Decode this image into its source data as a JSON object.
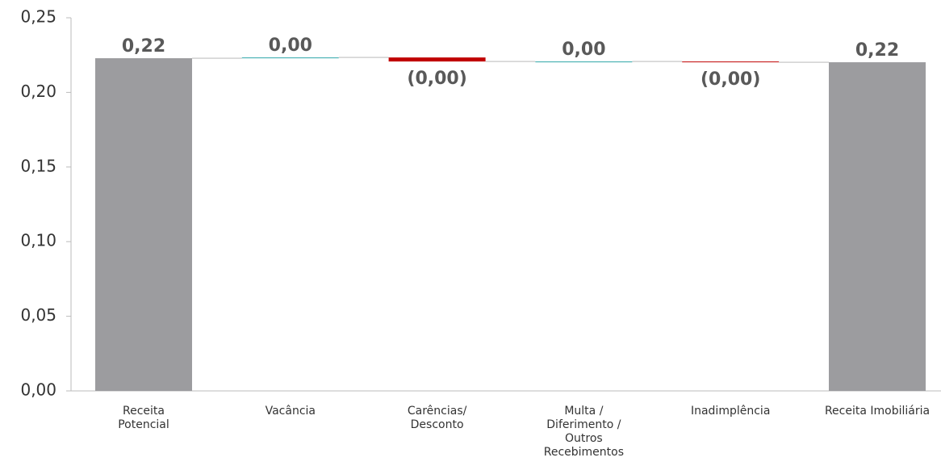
{
  "chart_data": {
    "type": "waterfall",
    "categories": [
      "Receita\nPotencial",
      "Vacância",
      "Carências/\nDesconto",
      "Multa /\nDiferimento /\nOutros\nRecebimentos",
      "Inadimplência",
      "Receita Imobiliária"
    ],
    "values": [
      0.2229,
      0.0005,
      -0.0027,
      0,
      -0.0005,
      0.2202
    ],
    "value_labels": [
      "0,22",
      "0,00",
      "(0,00)",
      "0,00",
      "(0,00)",
      "0,22"
    ],
    "measures": [
      "total",
      "relative",
      "relative",
      "relative",
      "relative",
      "total"
    ],
    "colors": {
      "total": "#9c9c9f",
      "increase": "#2ba5a8",
      "decrease": "#c00000"
    },
    "ylim": [
      0,
      0.25
    ],
    "yticks": [
      {
        "value": 0,
        "label": "0,00"
      },
      {
        "value": 0.05,
        "label": "0,05"
      },
      {
        "value": 0.1,
        "label": "0,10"
      },
      {
        "value": 0.15,
        "label": "0,15"
      },
      {
        "value": 0.2,
        "label": "0,20"
      },
      {
        "value": 0.25,
        "label": "0,25"
      }
    ]
  }
}
